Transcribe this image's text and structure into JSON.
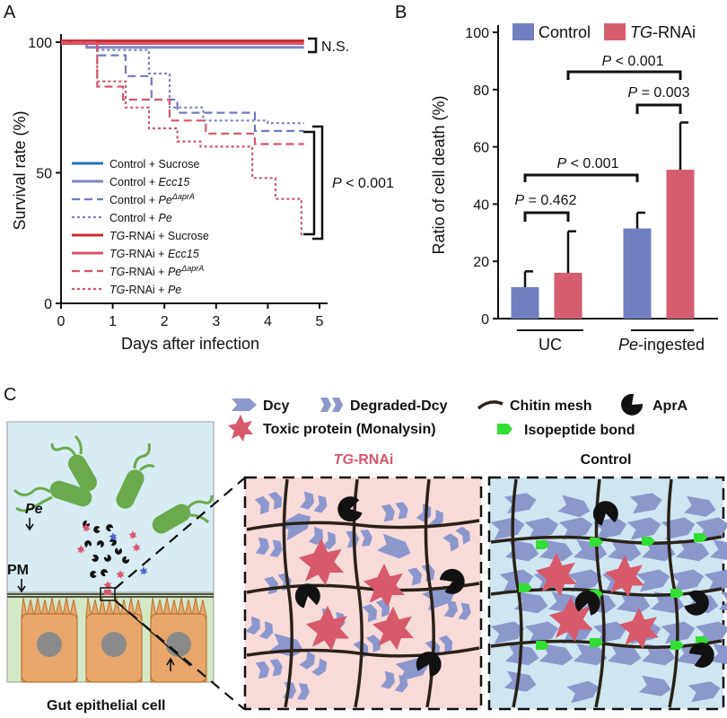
{
  "panels": {
    "a": "A",
    "b": "B",
    "c": "C"
  },
  "chart_data": [
    {
      "type": "line",
      "xlabel": "Days after infection",
      "ylabel": "Survival rate (%)",
      "xlim": [
        0,
        5
      ],
      "ylim": [
        0,
        100
      ],
      "x_ticks": [
        "0",
        "1",
        "2",
        "3",
        "4",
        "5"
      ],
      "y_ticks": [
        "0",
        "50",
        "100"
      ],
      "legend_position": "bottom-left",
      "series": [
        {
          "name_parts": [
            "Control + Sucrose"
          ],
          "color": "#2a6fb5",
          "dash": "solid",
          "points": [
            [
              0,
              100
            ],
            [
              4.7,
              100
            ]
          ]
        },
        {
          "name_parts": [
            "Control + ",
            "Ecc15"
          ],
          "color": "#7d85c2",
          "dash": "solid",
          "points": [
            [
              0,
              100
            ],
            [
              0.5,
              100
            ],
            [
              0.5,
              98
            ],
            [
              4.7,
              98
            ]
          ]
        },
        {
          "name_parts": [
            "Control + ",
            "Pe",
            "ΔaprA"
          ],
          "color": "#6f7ac0",
          "dash": "dashed",
          "points": [
            [
              0,
              100
            ],
            [
              0.7,
              100
            ],
            [
              0.7,
              95
            ],
            [
              1.25,
              95
            ],
            [
              1.25,
              87
            ],
            [
              1.75,
              87
            ],
            [
              1.75,
              78
            ],
            [
              2.25,
              78
            ],
            [
              2.25,
              73
            ],
            [
              3.75,
              73
            ],
            [
              3.75,
              66
            ],
            [
              4.7,
              66
            ]
          ]
        },
        {
          "name_parts": [
            "Control + ",
            "Pe"
          ],
          "color": "#7d85c2",
          "dash": "dotted",
          "points": [
            [
              0,
              100
            ],
            [
              0.7,
              100
            ],
            [
              0.7,
              97
            ],
            [
              1.7,
              97
            ],
            [
              1.7,
              88
            ],
            [
              2.1,
              88
            ],
            [
              2.1,
              75
            ],
            [
              2.75,
              75
            ],
            [
              2.75,
              70
            ],
            [
              4,
              70
            ],
            [
              4,
              69
            ],
            [
              4.7,
              69
            ]
          ]
        },
        {
          "name_parts": [
            "TG",
            "-RNAi + Sucrose"
          ],
          "color": "#cc2a36",
          "dash": "solid",
          "points": [
            [
              0,
              100.5
            ],
            [
              4.7,
              100.5
            ]
          ]
        },
        {
          "name_parts": [
            "TG",
            "-RNAi + ",
            "Ecc15"
          ],
          "color": "#d6566a",
          "dash": "solid",
          "points": [
            [
              0,
              99.5
            ],
            [
              4.7,
              99.5
            ]
          ]
        },
        {
          "name_parts": [
            "TG",
            "-RNAi + ",
            "Pe",
            "ΔaprA"
          ],
          "color": "#d6566a",
          "dash": "dashed",
          "points": [
            [
              0,
              100
            ],
            [
              0.7,
              100
            ],
            [
              0.7,
              83
            ],
            [
              1.2,
              83
            ],
            [
              1.2,
              78
            ],
            [
              2.1,
              78
            ],
            [
              2.1,
              70
            ],
            [
              2.8,
              70
            ],
            [
              2.8,
              65
            ],
            [
              3.75,
              65
            ],
            [
              3.75,
              61
            ],
            [
              4.7,
              61
            ]
          ]
        },
        {
          "name_parts": [
            "TG",
            "-RNAi + ",
            "Pe"
          ],
          "color": "#d6566a",
          "dash": "dotted",
          "points": [
            [
              0,
              100
            ],
            [
              0.7,
              100
            ],
            [
              0.7,
              85
            ],
            [
              1.25,
              85
            ],
            [
              1.25,
              75
            ],
            [
              1.7,
              75
            ],
            [
              1.7,
              67
            ],
            [
              2.25,
              67
            ],
            [
              2.25,
              62
            ],
            [
              2.7,
              62
            ],
            [
              2.7,
              60
            ],
            [
              3.7,
              60
            ],
            [
              3.7,
              48
            ],
            [
              4.15,
              48
            ],
            [
              4.15,
              40
            ],
            [
              4.65,
              40
            ],
            [
              4.65,
              25
            ]
          ]
        }
      ],
      "annotations": {
        "ns": "N.S.",
        "p_prefix": "P",
        "p_value": " < 0.001"
      }
    },
    {
      "type": "bar",
      "ylabel": "Ratio of cell death (%)",
      "ylim": [
        0,
        100
      ],
      "y_ticks": [
        "0",
        "20",
        "40",
        "60",
        "80",
        "100"
      ],
      "categories": [
        {
          "parts": [
            "UC"
          ]
        },
        {
          "parts": [
            "Pe",
            "-ingested"
          ]
        }
      ],
      "legend_position": "top",
      "series": [
        {
          "name_parts": [
            "Control"
          ],
          "color": "#717ec0",
          "values": [
            11,
            31.5
          ],
          "errors": [
            5.5,
            5.5
          ]
        },
        {
          "name_parts": [
            "TG",
            "-RNAi"
          ],
          "color": "#d45e70",
          "values": [
            16,
            52
          ],
          "errors": [
            14.5,
            16.5
          ]
        }
      ],
      "comparisons": [
        {
          "label": "= 0.462"
        },
        {
          "label": "< 0.001"
        },
        {
          "label": "= 0.003"
        },
        {
          "label": "< 0.001"
        }
      ],
      "p_prefix": "P"
    }
  ],
  "diagram": {
    "legend": {
      "dcy": "Dcy",
      "degraded": "Degraded-Dcy",
      "chitin": "Chitin mesh",
      "apra": "AprA",
      "toxic": "Toxic protein (Monalysin)",
      "isopeptide": "Isopeptide bond"
    },
    "left": {
      "pe": "Pe",
      "pm": "PM",
      "cell": "Gut epithelial cell"
    },
    "tg_title": "TG-RNAi",
    "control_title": "Control",
    "colors": {
      "dcy": "#8c97cc",
      "toxic": "#d65a6c",
      "chitin": "#2a2218",
      "apra": "#111111",
      "bond": "#33dd33",
      "tg_bg": "#f7dbd9",
      "ctrl_bg": "#cfe6f0",
      "lumen": "#d9ecf4",
      "tissue": "#d5e8c5",
      "cell": "#e9a66b",
      "nucleus": "#8a8a8a",
      "bacteria": "#6aaa4c"
    }
  }
}
